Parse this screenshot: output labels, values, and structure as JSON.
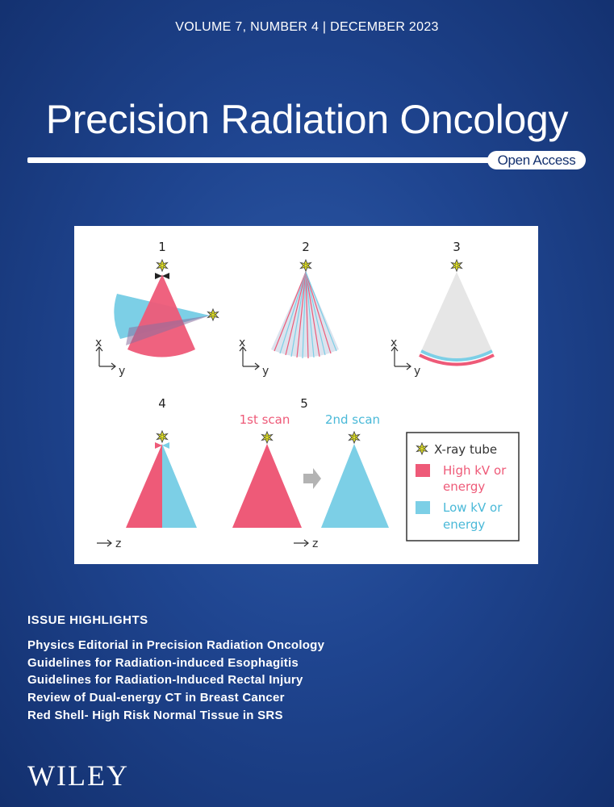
{
  "cover": {
    "volume_line": "VOLUME 7, NUMBER 4 | DECEMBER 2023",
    "journal_title": "Precision Radiation Oncology",
    "access_badge": "Open Access",
    "publisher": "WILEY"
  },
  "figure": {
    "panel_numbers": [
      "1",
      "2",
      "3",
      "4",
      "5"
    ],
    "axis_x": "x",
    "axis_y": "y",
    "axis_z": "z",
    "scan_labels": [
      "1st scan",
      "2nd scan"
    ],
    "legend": {
      "xray_tube": "X-ray tube",
      "high_line1": "High kV or",
      "high_line2": "energy",
      "low_line1": "Low kV or",
      "low_line2": "energy"
    },
    "colors": {
      "high": "#ee5a78",
      "low": "#7ccfe6",
      "sun": "#e8e820",
      "gray_fan": "#e6e6e6"
    }
  },
  "highlights": {
    "heading": "ISSUE HIGHLIGHTS",
    "items": [
      "Physics Editorial in Precision Radiation Oncology",
      "Guidelines for Radiation-induced Esophagitis",
      "Guidelines for Radiation-Induced Rectal Injury",
      "Review of Dual-energy CT in Breast Cancer",
      "Red Shell- High Risk Normal Tissue in SRS"
    ]
  }
}
